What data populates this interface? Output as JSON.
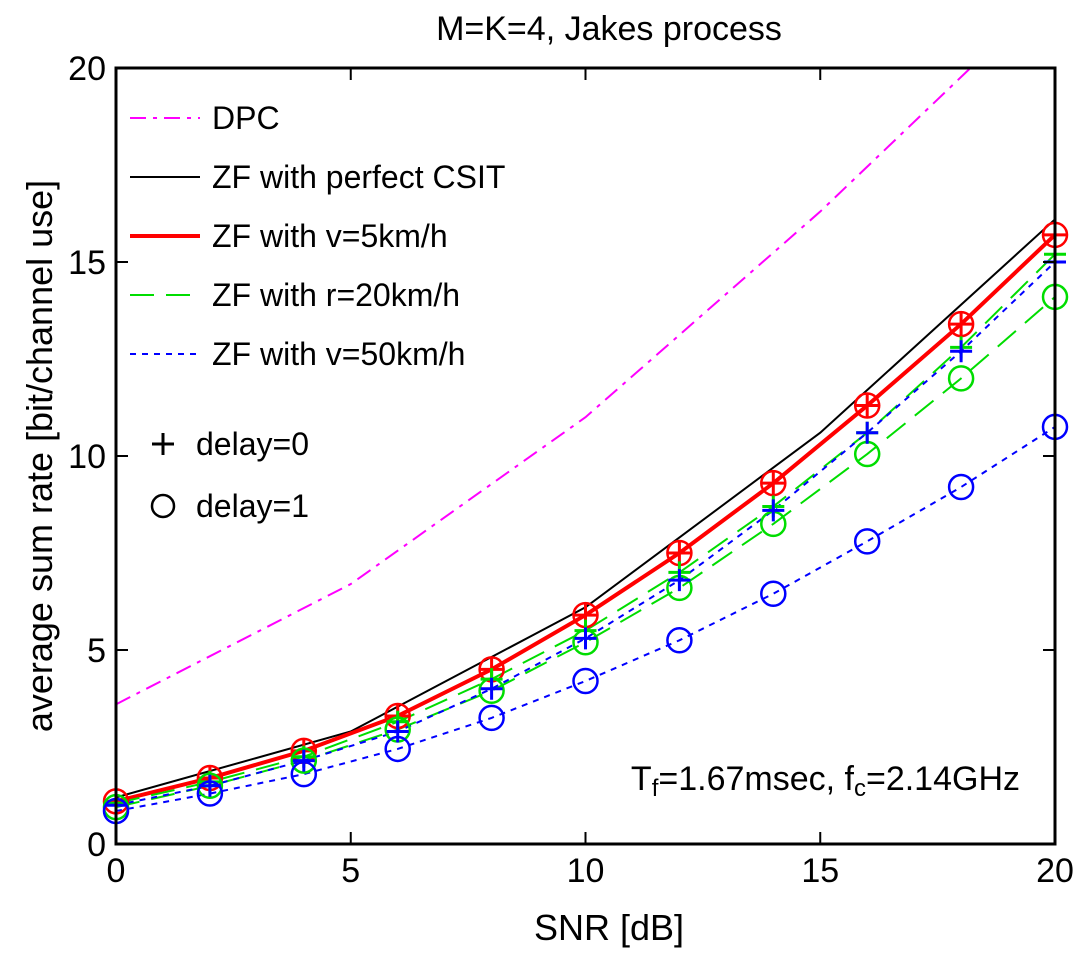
{
  "chart_data": {
    "type": "line",
    "title": "M=K=4, Jakes process",
    "xlabel": "SNR [dB]",
    "ylabel": "average sum rate [bit/channel use]",
    "xlim": [
      0,
      20
    ],
    "ylim": [
      0,
      20
    ],
    "xticks": [
      0,
      5,
      10,
      15,
      20
    ],
    "yticks": [
      0,
      5,
      10,
      15,
      20
    ],
    "grid": false,
    "legend_position": "top-left",
    "annotation": {
      "parts": [
        {
          "text": "T",
          "sub": false
        },
        {
          "text": "f",
          "sub": true
        },
        {
          "text": "=1.67msec, f",
          "sub": false
        },
        {
          "text": "c",
          "sub": true
        },
        {
          "text": "=2.14GHz",
          "sub": false
        }
      ]
    },
    "marker_legend": [
      {
        "symbol": "+",
        "label": "delay=0"
      },
      {
        "symbol": "o",
        "label": "delay=1"
      }
    ],
    "series": [
      {
        "name": "DPC",
        "color": "#ff00ff",
        "style": "dashdot",
        "width": 2,
        "x": [
          0,
          5,
          10,
          15,
          18.2
        ],
        "y": [
          3.6,
          6.7,
          11.0,
          16.3,
          20.0
        ]
      },
      {
        "name": "ZF with perfect CSIT",
        "color": "#000000",
        "style": "solid",
        "width": 2,
        "x": [
          0,
          5,
          10,
          15,
          20
        ],
        "y": [
          1.2,
          2.9,
          6.1,
          10.6,
          16.1
        ]
      },
      {
        "name": "ZF with v=5km/h",
        "color": "#ff0000",
        "style": "solid",
        "width": 4,
        "x": [
          0,
          2,
          4,
          6,
          8,
          10,
          12,
          14,
          16,
          18,
          20
        ],
        "y": [
          1.1,
          1.7,
          2.4,
          3.3,
          4.5,
          5.9,
          7.5,
          9.3,
          11.3,
          13.4,
          15.7
        ]
      },
      {
        "name": "ZF with r=20km/h",
        "color": "#00dd00",
        "style": "dashed",
        "width": 2,
        "x": [
          0,
          2,
          4,
          6,
          8,
          10,
          12,
          14,
          16,
          18,
          20
        ],
        "y": [
          1.05,
          1.6,
          2.25,
          3.15,
          4.25,
          5.5,
          7.0,
          8.7,
          10.6,
          12.8,
          15.2
        ]
      },
      {
        "name": "",
        "color": "#00dd00",
        "style": "dashed",
        "width": 2,
        "x": [
          0,
          2,
          4,
          6,
          8,
          10,
          12,
          14,
          16,
          18,
          20
        ],
        "y": [
          0.95,
          1.5,
          2.15,
          2.95,
          3.95,
          5.2,
          6.6,
          8.25,
          10.05,
          12.0,
          14.1
        ]
      },
      {
        "name": "ZF with v=50km/h",
        "color": "#0000ff",
        "style": "dotted",
        "width": 2,
        "x": [
          0,
          2,
          4,
          6,
          8,
          10,
          12,
          14,
          16,
          18,
          20
        ],
        "y": [
          1.0,
          1.5,
          2.15,
          2.9,
          4.0,
          5.3,
          6.8,
          8.6,
          10.6,
          12.7,
          15.0
        ]
      },
      {
        "name": "",
        "color": "#0000ff",
        "style": "dotted",
        "width": 2,
        "x": [
          0,
          2,
          4,
          6,
          8,
          10,
          12,
          14,
          16,
          18,
          20
        ],
        "y": [
          0.85,
          1.3,
          1.8,
          2.45,
          3.25,
          4.2,
          5.25,
          6.45,
          7.8,
          9.2,
          10.75
        ]
      }
    ],
    "markers": [
      {
        "symbol": "+",
        "color": "#ff0000",
        "x": [
          0,
          2,
          4,
          6,
          8,
          10,
          12,
          14,
          16,
          18,
          20
        ],
        "y": [
          1.1,
          1.7,
          2.4,
          3.3,
          4.5,
          5.9,
          7.5,
          9.3,
          11.3,
          13.4,
          15.7
        ]
      },
      {
        "symbol": "o",
        "color": "#ff0000",
        "x": [
          0,
          2,
          4,
          6,
          8,
          10,
          12,
          14,
          16,
          18,
          20
        ],
        "y": [
          1.1,
          1.7,
          2.4,
          3.3,
          4.5,
          5.9,
          7.5,
          9.3,
          11.3,
          13.4,
          15.7
        ]
      },
      {
        "symbol": "+",
        "color": "#00dd00",
        "x": [
          0,
          2,
          4,
          6,
          8,
          10,
          12,
          14,
          16,
          18,
          20
        ],
        "y": [
          1.05,
          1.6,
          2.25,
          3.15,
          4.25,
          5.5,
          7.0,
          8.7,
          10.6,
          12.8,
          15.2
        ]
      },
      {
        "symbol": "o",
        "color": "#00dd00",
        "x": [
          0,
          2,
          4,
          6,
          8,
          10,
          12,
          14,
          16,
          18,
          20
        ],
        "y": [
          0.95,
          1.5,
          2.15,
          2.95,
          3.95,
          5.2,
          6.6,
          8.25,
          10.05,
          12.0,
          14.1
        ]
      },
      {
        "symbol": "+",
        "color": "#0000ff",
        "x": [
          0,
          2,
          4,
          6,
          8,
          10,
          12,
          14,
          16,
          18,
          20
        ],
        "y": [
          1.0,
          1.5,
          2.15,
          2.9,
          4.0,
          5.3,
          6.8,
          8.6,
          10.6,
          12.7,
          15.0
        ]
      },
      {
        "symbol": "o",
        "color": "#0000ff",
        "x": [
          0,
          2,
          4,
          6,
          8,
          10,
          12,
          14,
          16,
          18,
          20
        ],
        "y": [
          0.85,
          1.3,
          1.8,
          2.45,
          3.25,
          4.2,
          5.25,
          6.45,
          7.8,
          9.2,
          10.75
        ]
      }
    ]
  }
}
